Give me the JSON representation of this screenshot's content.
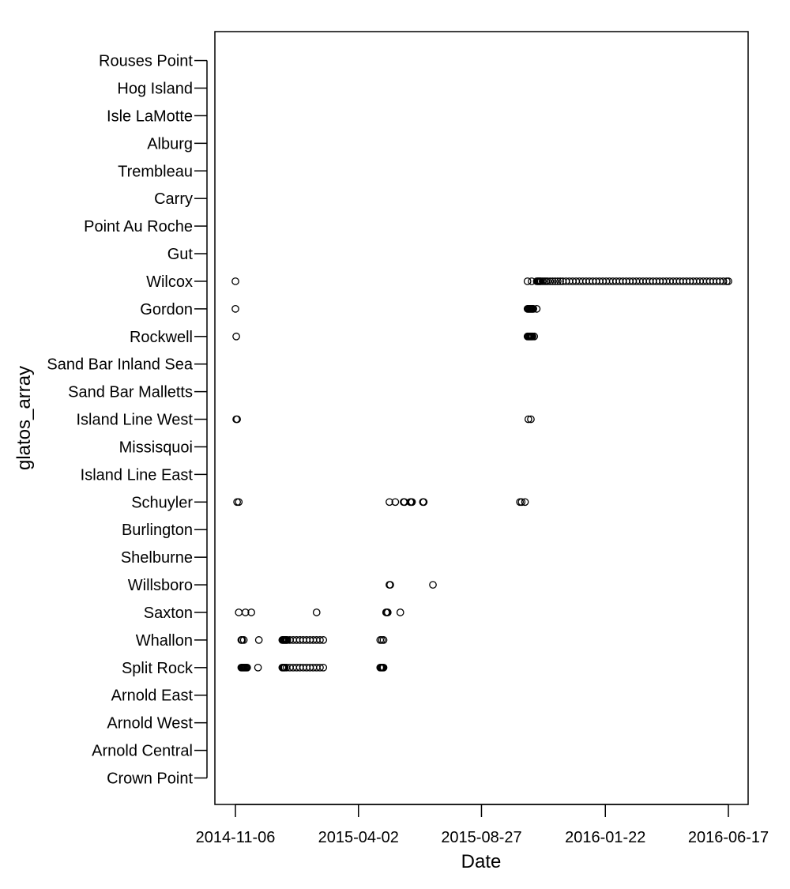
{
  "chart_data": {
    "type": "scatter",
    "xlabel": "Date",
    "ylabel": "glatos_array",
    "x_ticks": [
      "2014-11-06",
      "2015-04-02",
      "2015-08-27",
      "2016-01-22",
      "2016-06-17"
    ],
    "xlim": [
      "2014-10-28",
      "2016-06-26"
    ],
    "categories": [
      "Crown Point",
      "Arnold Central",
      "Arnold West",
      "Arnold East",
      "Split Rock",
      "Whallon",
      "Saxton",
      "Willsboro",
      "Shelburne",
      "Burlington",
      "Schuyler",
      "Island Line East",
      "Missisquoi",
      "Island Line West",
      "Sand Bar Malletts",
      "Sand Bar Inland Sea",
      "Rockwell",
      "Gordon",
      "Wilcox",
      "Gut",
      "Point Au Roche",
      "Carry",
      "Trembleau",
      "Alburg",
      "Isle LaMotte",
      "Hog Island",
      "Rouses Point"
    ],
    "points": [
      {
        "y": "Wilcox",
        "x": [
          "2014-11-06",
          "2015-10-21",
          "2015-10-26",
          "2015-11-01",
          "2015-11-02",
          "2015-11-03",
          "2015-11-04",
          "2015-11-05",
          "2015-11-06",
          "2015-11-08",
          "2015-11-10",
          "2015-11-12",
          "2015-11-14",
          "2015-11-17",
          "2015-11-20",
          "2015-11-23",
          "2015-11-26",
          "2015-11-29",
          "2015-12-02",
          "2015-12-06",
          "2015-12-10",
          "2015-12-14",
          "2015-12-18",
          "2015-12-22",
          "2015-12-26",
          "2015-12-30",
          "2016-01-03",
          "2016-01-07",
          "2016-01-11",
          "2016-01-15",
          "2016-01-19",
          "2016-01-23",
          "2016-01-27",
          "2016-01-31",
          "2016-02-04",
          "2016-02-08",
          "2016-02-12",
          "2016-02-16",
          "2016-02-20",
          "2016-02-24",
          "2016-02-28",
          "2016-03-03",
          "2016-03-07",
          "2016-03-11",
          "2016-03-15",
          "2016-03-19",
          "2016-03-23",
          "2016-03-27",
          "2016-03-31",
          "2016-04-04",
          "2016-04-08",
          "2016-04-12",
          "2016-04-16",
          "2016-04-20",
          "2016-04-24",
          "2016-04-28",
          "2016-05-02",
          "2016-05-06",
          "2016-05-10",
          "2016-05-14",
          "2016-05-18",
          "2016-05-22",
          "2016-05-26",
          "2016-05-30",
          "2016-06-03",
          "2016-06-07",
          "2016-06-11",
          "2016-06-15",
          "2016-06-17"
        ]
      },
      {
        "y": "Gordon",
        "x": [
          "2014-11-06",
          "2015-10-21",
          "2015-10-22",
          "2015-10-23",
          "2015-10-24",
          "2015-10-25",
          "2015-10-26",
          "2015-10-27",
          "2015-10-28",
          "2015-11-01"
        ]
      },
      {
        "y": "Rockwell",
        "x": [
          "2014-11-07",
          "2015-10-21",
          "2015-10-22",
          "2015-10-23",
          "2015-10-24",
          "2015-10-25",
          "2015-10-26",
          "2015-10-27",
          "2015-10-29"
        ]
      },
      {
        "y": "Island Line West",
        "x": [
          "2014-11-07",
          "2014-11-08",
          "2015-10-22",
          "2015-10-25"
        ]
      },
      {
        "y": "Schuyler",
        "x": [
          "2014-11-08",
          "2014-11-10",
          "2015-05-09",
          "2015-05-16",
          "2015-05-26",
          "2015-05-27",
          "2015-06-03",
          "2015-06-04",
          "2015-06-05",
          "2015-06-18",
          "2015-06-19",
          "2015-10-12",
          "2015-10-14",
          "2015-10-18"
        ]
      },
      {
        "y": "Willsboro",
        "x": [
          "2015-05-09",
          "2015-05-10",
          "2015-06-30"
        ]
      },
      {
        "y": "Saxton",
        "x": [
          "2014-11-10",
          "2014-11-18",
          "2014-11-25",
          "2015-02-11",
          "2015-05-05",
          "2015-05-06",
          "2015-05-07",
          "2015-05-22"
        ]
      },
      {
        "y": "Whallon",
        "x": [
          "2014-11-13",
          "2014-11-14",
          "2014-11-16",
          "2014-12-04",
          "2015-01-01",
          "2015-01-02",
          "2015-01-03",
          "2015-01-04",
          "2015-01-05",
          "2015-01-06",
          "2015-01-07",
          "2015-01-10",
          "2015-01-14",
          "2015-01-18",
          "2015-01-22",
          "2015-01-26",
          "2015-01-30",
          "2015-02-03",
          "2015-02-07",
          "2015-02-11",
          "2015-02-15",
          "2015-02-19",
          "2015-04-28",
          "2015-04-30",
          "2015-05-02"
        ]
      },
      {
        "y": "Split Rock",
        "x": [
          "2014-11-13",
          "2014-11-14",
          "2014-11-15",
          "2014-11-16",
          "2014-11-17",
          "2014-11-18",
          "2014-11-19",
          "2014-11-20",
          "2014-12-03",
          "2015-01-01",
          "2015-01-02",
          "2015-01-03",
          "2015-01-04",
          "2015-01-06",
          "2015-01-10",
          "2015-01-14",
          "2015-01-18",
          "2015-01-22",
          "2015-01-26",
          "2015-01-30",
          "2015-02-03",
          "2015-02-07",
          "2015-02-11",
          "2015-02-15",
          "2015-02-19",
          "2015-04-28",
          "2015-04-29",
          "2015-04-30",
          "2015-05-01",
          "2015-05-02"
        ]
      }
    ]
  }
}
